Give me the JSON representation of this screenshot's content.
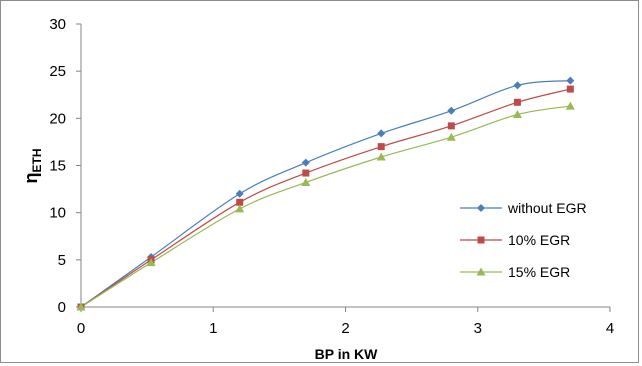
{
  "chart_data": {
    "type": "line",
    "title": "",
    "xlabel": "BP in KW",
    "ylabel_main": "η",
    "ylabel_sub": "ETH",
    "xlim": [
      0,
      4
    ],
    "ylim": [
      0,
      30
    ],
    "xticks": [
      "0",
      "1",
      "2",
      "3",
      "4"
    ],
    "yticks": [
      "0",
      "5",
      "10",
      "15",
      "20",
      "25",
      "30"
    ],
    "grid": false,
    "legend_position": "right",
    "series": [
      {
        "name": "without EGR",
        "color": "#4a7ebb",
        "marker": "diamond",
        "x": [
          0,
          0.53,
          1.2,
          1.7,
          2.27,
          2.8,
          3.3,
          3.7
        ],
        "y": [
          0,
          5.3,
          12.0,
          15.3,
          18.4,
          20.8,
          23.5,
          24.0
        ]
      },
      {
        "name": "10% EGR",
        "color": "#be4b48",
        "marker": "square",
        "x": [
          0,
          0.53,
          1.2,
          1.7,
          2.27,
          2.8,
          3.3,
          3.7
        ],
        "y": [
          0,
          5.0,
          11.1,
          14.2,
          17.0,
          19.2,
          21.7,
          23.1
        ]
      },
      {
        "name": "15% EGR",
        "color": "#98b954",
        "marker": "triangle",
        "x": [
          0,
          0.53,
          1.2,
          1.7,
          2.27,
          2.8,
          3.3,
          3.7
        ],
        "y": [
          0,
          4.7,
          10.4,
          13.2,
          15.9,
          18.0,
          20.4,
          21.3
        ]
      }
    ]
  }
}
